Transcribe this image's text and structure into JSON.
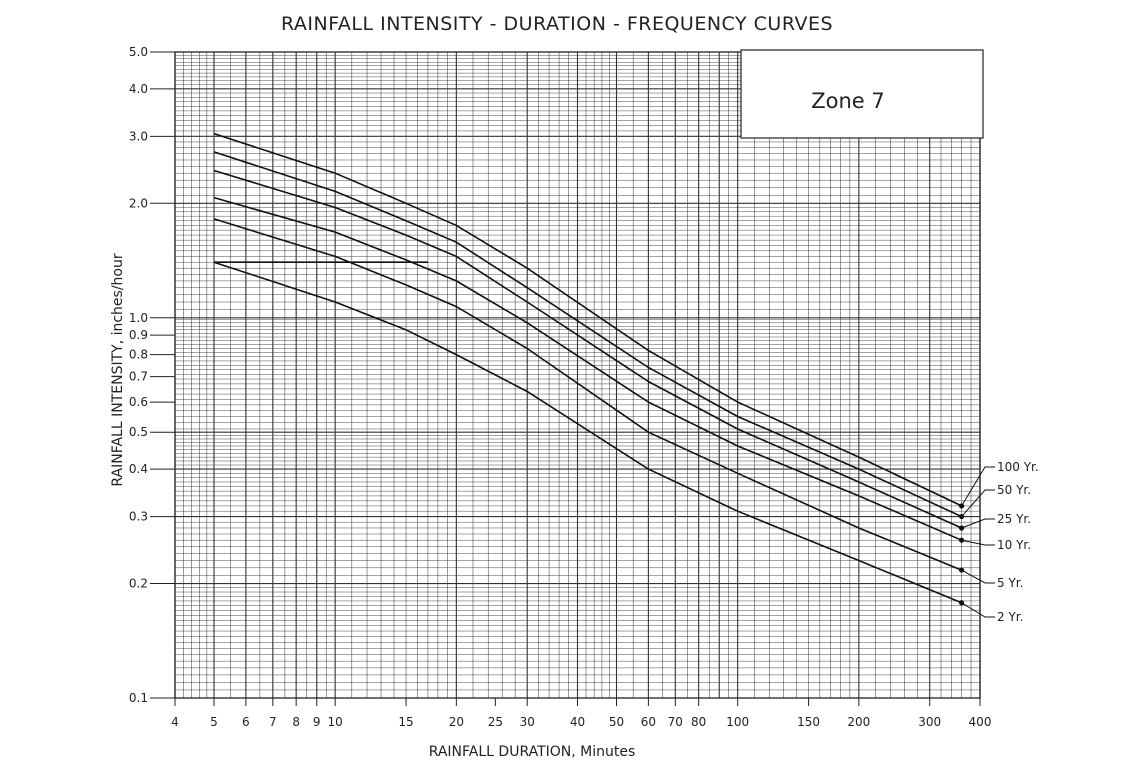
{
  "chart_data": {
    "type": "line",
    "title": "RAINFALL INTENSITY - DURATION - FREQUENCY CURVES",
    "xlabel": "RAINFALL DURATION, Minutes",
    "ylabel": "RAINFALL INTENSITY, inches/hour",
    "xscale": "log",
    "yscale": "log",
    "xlim": [
      4,
      400
    ],
    "ylim": [
      0.1,
      5.0
    ],
    "grid": true,
    "annotation": "Zone 7",
    "x_ticks": [
      4,
      5,
      6,
      7,
      8,
      9,
      10,
      15,
      20,
      25,
      30,
      40,
      50,
      60,
      70,
      80,
      100,
      150,
      200,
      300,
      400
    ],
    "y_ticks": [
      0.1,
      0.2,
      0.3,
      0.4,
      0.5,
      0.6,
      0.7,
      0.8,
      0.9,
      1.0,
      2.0,
      3.0,
      4.0,
      5.0
    ],
    "y_tick_labels": [
      "0.1",
      "0.2",
      "0.3",
      "0.4",
      "0.5",
      "0.6",
      "0.7",
      "0.8",
      "0.9",
      "1.0",
      "2.0",
      "3.0",
      "4.0",
      "5.0"
    ],
    "x": [
      5,
      10,
      15,
      20,
      30,
      60,
      100,
      200,
      360
    ],
    "series": [
      {
        "name": "100 Yr.",
        "values": [
          3.05,
          2.4,
          2.0,
          1.75,
          1.35,
          0.82,
          0.6,
          0.43,
          0.32
        ]
      },
      {
        "name": "50 Yr.",
        "values": [
          2.73,
          2.15,
          1.8,
          1.58,
          1.2,
          0.74,
          0.55,
          0.4,
          0.3
        ]
      },
      {
        "name": "25 Yr.",
        "values": [
          2.44,
          1.95,
          1.65,
          1.45,
          1.1,
          0.68,
          0.51,
          0.37,
          0.28
        ]
      },
      {
        "name": "10 Yr.",
        "values": [
          2.07,
          1.68,
          1.42,
          1.25,
          0.97,
          0.6,
          0.46,
          0.34,
          0.26
        ]
      },
      {
        "name": "5 Yr.",
        "values": [
          1.82,
          1.45,
          1.22,
          1.07,
          0.83,
          0.5,
          0.39,
          0.28,
          0.217
        ]
      },
      {
        "name": "2 Yr.",
        "values": [
          1.4,
          1.1,
          0.93,
          0.8,
          0.64,
          0.4,
          0.31,
          0.23,
          0.178
        ]
      }
    ],
    "reference_line": {
      "y": 1.4,
      "x": [
        5,
        17
      ]
    },
    "legend_placement": "right"
  }
}
